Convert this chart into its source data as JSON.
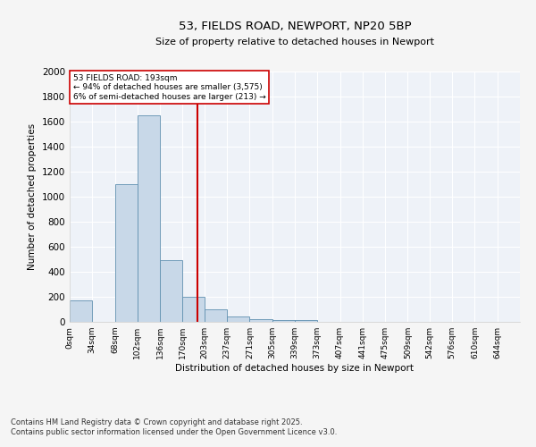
{
  "title": "53, FIELDS ROAD, NEWPORT, NP20 5BP",
  "subtitle": "Size of property relative to detached houses in Newport",
  "xlabel": "Distribution of detached houses by size in Newport",
  "ylabel": "Number of detached properties",
  "bar_color": "#c8d8e8",
  "bar_edge_color": "#6090b0",
  "background_color": "#eef2f8",
  "fig_bg_color": "#f5f5f5",
  "vline_x": 193,
  "vline_color": "#cc0000",
  "annotation_title": "53 FIELDS ROAD: 193sqm",
  "annotation_line1": "← 94% of detached houses are smaller (3,575)",
  "annotation_line2": "6% of semi-detached houses are larger (213) →",
  "annotation_box_color": "#ffffff",
  "annotation_box_edge": "#cc0000",
  "bin_edges": [
    0,
    34,
    68,
    102,
    136,
    170,
    203,
    237,
    271,
    305,
    339,
    373,
    407,
    441,
    475,
    509,
    542,
    576,
    610,
    644,
    678
  ],
  "bin_counts": [
    170,
    0,
    1100,
    1650,
    490,
    200,
    100,
    40,
    25,
    15,
    15,
    0,
    0,
    0,
    0,
    0,
    0,
    0,
    0,
    0
  ],
  "ylim": [
    0,
    2000
  ],
  "yticks": [
    0,
    200,
    400,
    600,
    800,
    1000,
    1200,
    1400,
    1600,
    1800,
    2000
  ],
  "footnote1": "Contains HM Land Registry data © Crown copyright and database right 2025.",
  "footnote2": "Contains public sector information licensed under the Open Government Licence v3.0."
}
